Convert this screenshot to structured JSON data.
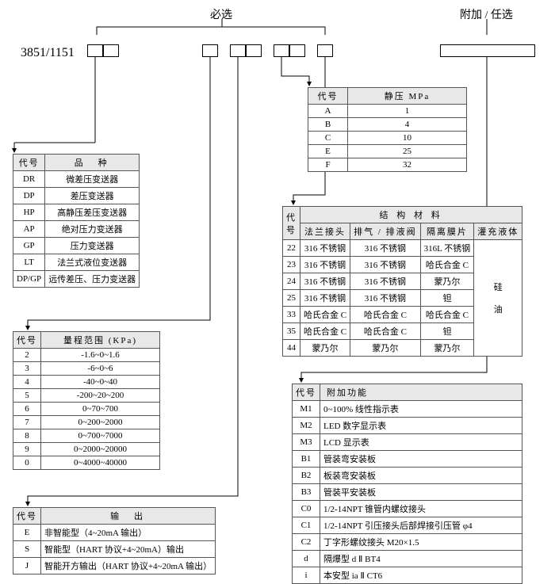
{
  "labels": {
    "required": "必选",
    "optional": "附加 / 任选",
    "model": "3851/1151"
  },
  "table_species": {
    "h_code": "代号",
    "h_kind": "品　种",
    "rows": [
      [
        "DR",
        "微差压变送器"
      ],
      [
        "DP",
        "差压变送器"
      ],
      [
        "HP",
        "高静压差压变送器"
      ],
      [
        "AP",
        "绝对压力变送器"
      ],
      [
        "GP",
        "压力变送器"
      ],
      [
        "LT",
        "法兰式液位变送器"
      ],
      [
        "DP/GP",
        "远传差压、压力变送器"
      ]
    ]
  },
  "table_range": {
    "h_code": "代号",
    "h_range": "量程范围 (KPa)",
    "rows": [
      [
        "2",
        "-1.6~0~1.6"
      ],
      [
        "3",
        "-6~0~6"
      ],
      [
        "4",
        "-40~0~40"
      ],
      [
        "5",
        "-200~20~200"
      ],
      [
        "6",
        "0~70~700"
      ],
      [
        "7",
        "0~200~2000"
      ],
      [
        "8",
        "0~700~7000"
      ],
      [
        "9",
        "0~2000~20000"
      ],
      [
        "0",
        "0~4000~40000"
      ]
    ]
  },
  "table_output": {
    "h_code": "代号",
    "h_out": "输　出",
    "rows": [
      [
        "E",
        "非智能型（4~20mA 输出）"
      ],
      [
        "S",
        "智能型（HART 协议+4~20mA）输出"
      ],
      [
        "J",
        "智能开方输出（HART 协议+4~20mA 输出）"
      ]
    ]
  },
  "table_static": {
    "h_code": "代号",
    "h_val": "静压 MPa",
    "rows": [
      [
        "A",
        "1"
      ],
      [
        "B",
        "4"
      ],
      [
        "C",
        "10"
      ],
      [
        "E",
        "25"
      ],
      [
        "F",
        "32"
      ]
    ]
  },
  "table_struct": {
    "h_code": "代\n号",
    "h_group": "结 构 材 料",
    "h_flange": "法兰接头",
    "h_vent": "排气 / 排液阀",
    "h_diaphragm": "隔离膜片",
    "h_fill": "灌充液体",
    "fill_value": "硅\n油",
    "rows": [
      [
        "22",
        "316 不锈钢",
        "316 不锈钢",
        "316L 不锈钢"
      ],
      [
        "23",
        "316 不锈钢",
        "316 不锈钢",
        "哈氏合金 C"
      ],
      [
        "24",
        "316 不锈钢",
        "316 不锈钢",
        "蒙乃尔"
      ],
      [
        "25",
        "316 不锈钢",
        "316 不锈钢",
        "钽"
      ],
      [
        "33",
        "哈氏合金 C",
        "哈氏合金 C",
        "哈氏合金 C"
      ],
      [
        "35",
        "哈氏合金 C",
        "哈氏合金 C",
        "钽"
      ],
      [
        "44",
        "蒙乃尔",
        "蒙乃尔",
        "蒙乃尔"
      ]
    ]
  },
  "table_addon": {
    "h_code": "代号",
    "h_fn": "附加功能",
    "rows": [
      [
        "M1",
        "0~100% 线性指示表"
      ],
      [
        "M2",
        "LED 数字显示表"
      ],
      [
        "M3",
        "LCD 显示表"
      ],
      [
        "B1",
        "管装弯安装板"
      ],
      [
        "B2",
        "板装弯安装板"
      ],
      [
        "B3",
        "管装平安装板"
      ],
      [
        "C0",
        "1/2-14NPT 锥管内螺纹接头"
      ],
      [
        "C1",
        "1/2-14NPT 引压接头后部焊接引压管 φ4"
      ],
      [
        "C2",
        "丁字形螺纹接头 M20×1.5"
      ],
      [
        "d",
        "隔爆型 d Ⅱ BT4"
      ],
      [
        "i",
        "本安型 ia Ⅱ CT6"
      ]
    ]
  },
  "layout": {
    "line_color": "#000",
    "header_bg": "#e8e8e8",
    "box_border": "#000",
    "small_box_w": 20,
    "small_box_h": 16,
    "wide_box_w": 110,
    "wide_box_h": 16
  }
}
